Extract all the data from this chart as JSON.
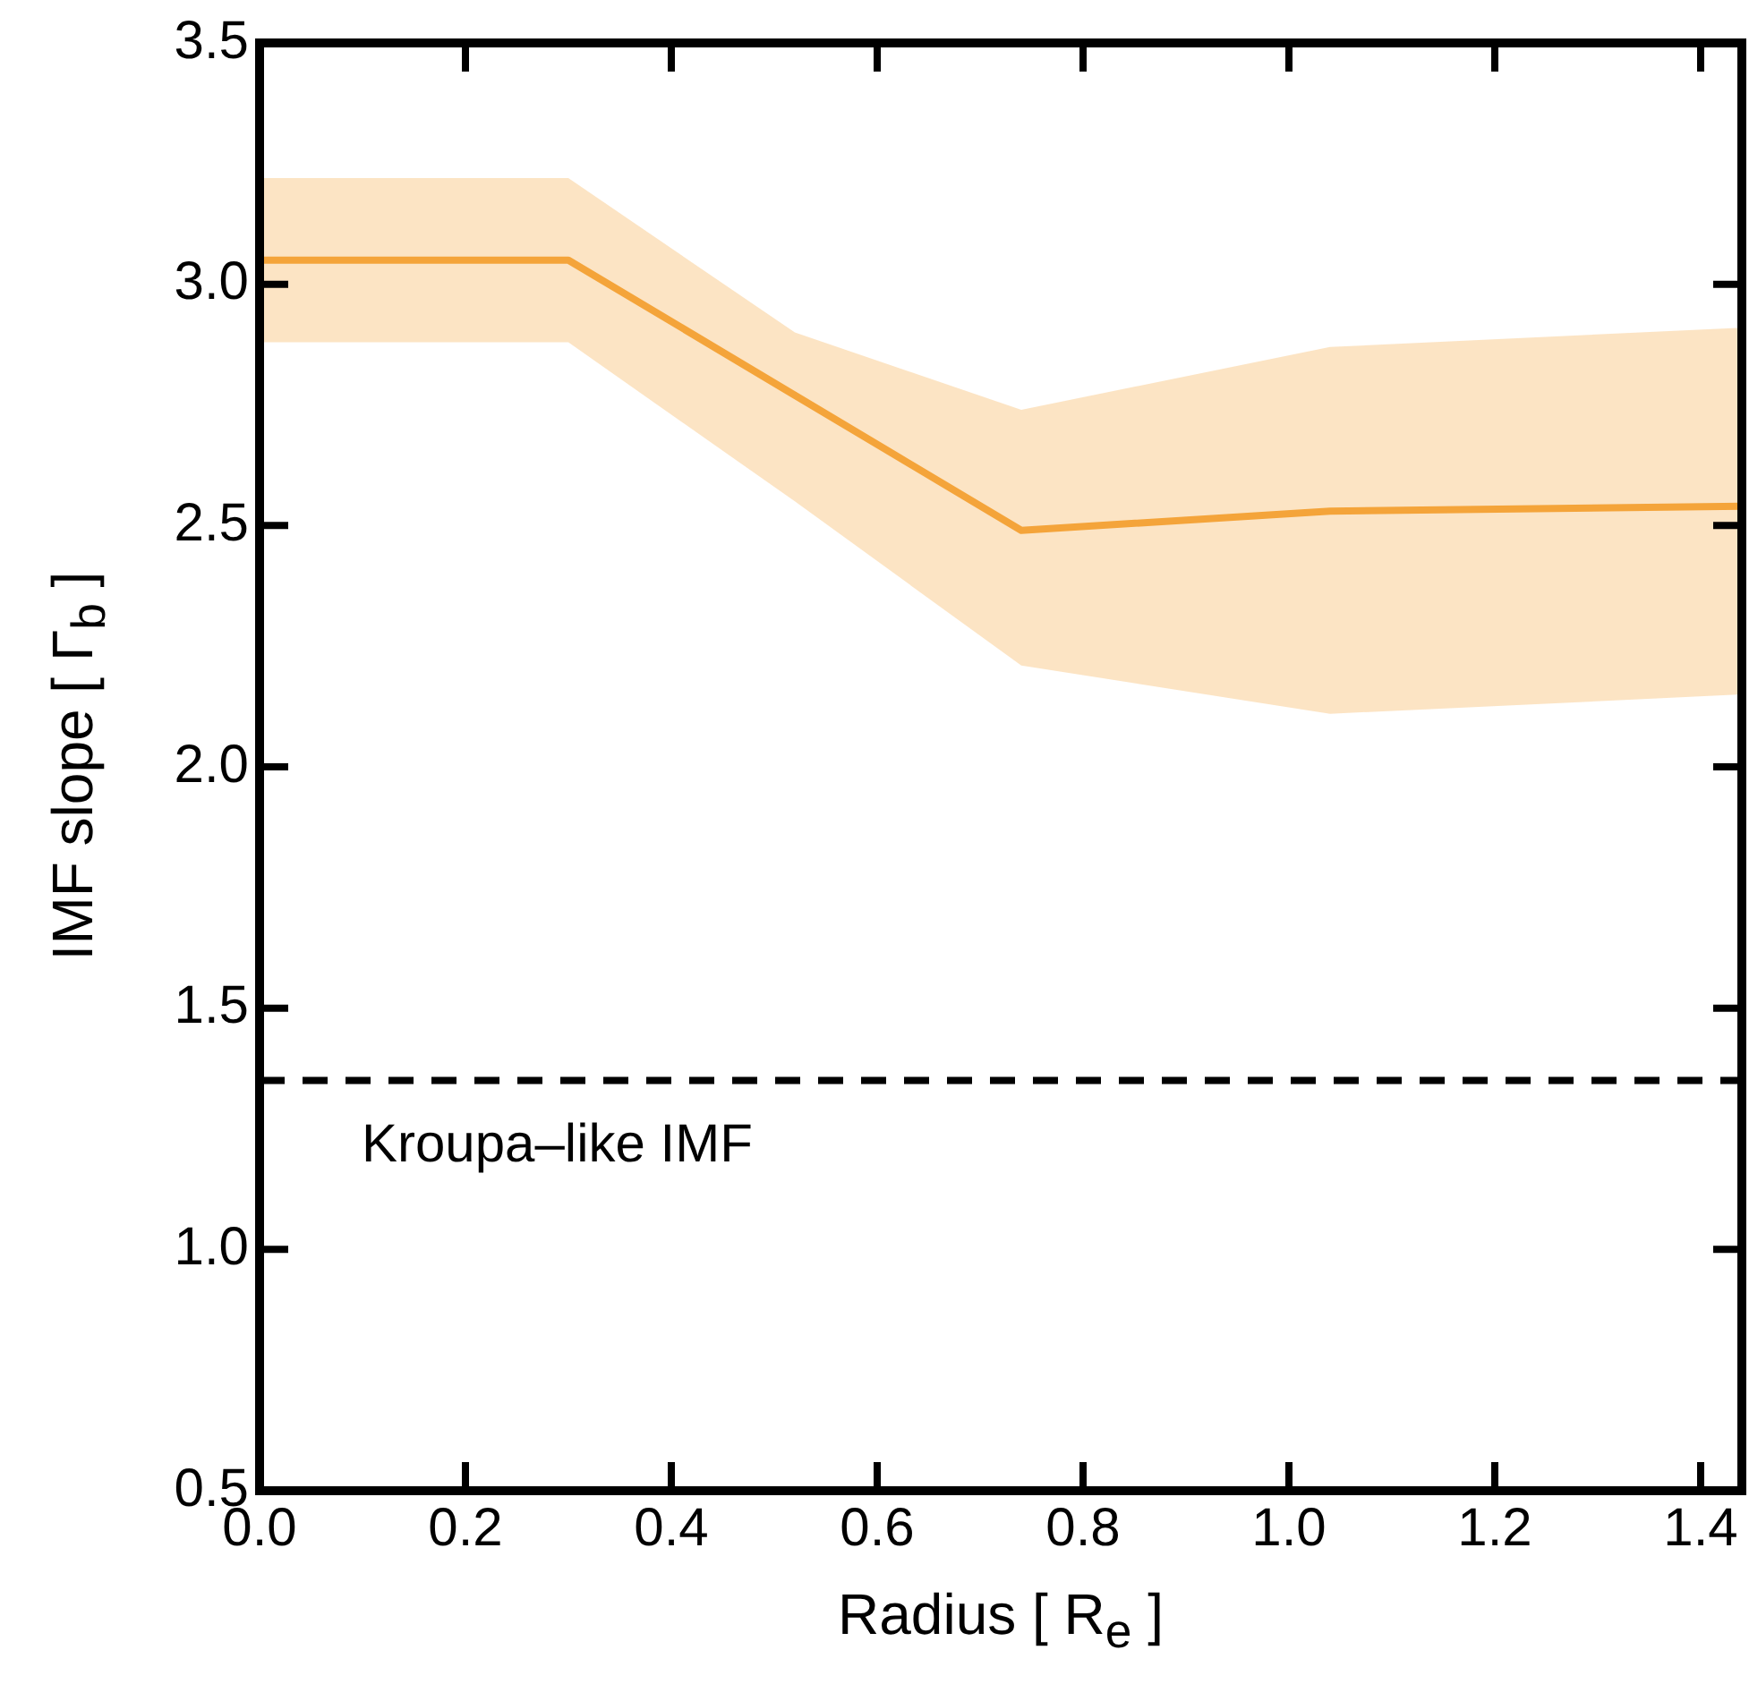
{
  "chart_data": {
    "type": "line",
    "xlabel": "Radius [ R$_{e}$ ]",
    "ylabel": "IMF slope [ Γ$_{b}$ ]",
    "x": [
      0,
      0.3,
      0.52,
      0.74,
      1.04,
      1.44
    ],
    "series": [
      {
        "color": "#f4a43a",
        "values": [
          3.05,
          3.05,
          2.77,
          2.49,
          2.53,
          2.54
        ],
        "lower": [
          2.88,
          2.88,
          2.55,
          2.21,
          2.11,
          2.15
        ],
        "upper": [
          3.22,
          3.22,
          2.9,
          2.74,
          2.87,
          2.91
        ]
      }
    ],
    "xlim": [
      0,
      1.44
    ],
    "xticks": [
      {
        "value": 0,
        "label": "0.0"
      },
      {
        "value": 0.2,
        "label": "0.2"
      },
      {
        "value": 0.4,
        "label": "0.4"
      },
      {
        "value": 0.6,
        "label": "0.6"
      },
      {
        "value": 0.8,
        "label": "0.8"
      },
      {
        "value": 1,
        "label": "1.0"
      },
      {
        "value": 1.2,
        "label": "1.2"
      },
      {
        "value": 1.4,
        "label": "1.4"
      }
    ],
    "ylim": [
      0.5,
      3.5
    ],
    "yticks": [
      0.5,
      {
        "value": 1,
        "label": "1.0"
      },
      1.5,
      {
        "value": 2,
        "label": "2.0"
      },
      2.5,
      {
        "value": 3,
        "label": "3.0"
      },
      3.5
    ],
    "ref_lines": [
      {
        "axis": "y",
        "value": 1.35,
        "label": "Kroupa–like IMF",
        "color": "#000000",
        "line_style": "dashed"
      }
    ],
    "grid": false,
    "legend": false,
    "marker": "none",
    "line_style": "solid"
  }
}
